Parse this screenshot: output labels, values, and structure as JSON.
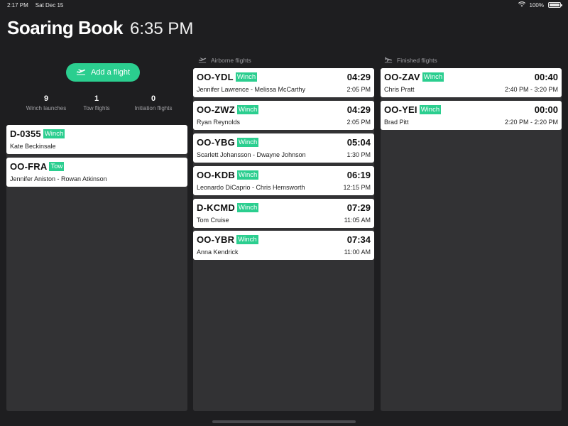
{
  "status_bar": {
    "time": "2:17 PM",
    "date": "Sat Dec 15",
    "battery": "100%"
  },
  "header": {
    "title": "Soaring Book",
    "clock": "6:35 PM"
  },
  "add_flight_label": "Add a flight",
  "stats": [
    {
      "value": "9",
      "label": "Winch launches"
    },
    {
      "value": "1",
      "label": "Tow flights"
    },
    {
      "value": "0",
      "label": "Initiation flights"
    }
  ],
  "columns": {
    "airborne_title": "Airborne flights",
    "finished_title": "Finished flights"
  },
  "pending": [
    {
      "callsign": "D-0355",
      "type": "Winch",
      "pilots": "Kate Beckinsale"
    },
    {
      "callsign": "OO-FRA",
      "type": "Tow",
      "pilots": "Jennifer Aniston - Rowan Atkinson"
    }
  ],
  "airborne": [
    {
      "callsign": "OO-YDL",
      "type": "Winch",
      "duration": "04:29",
      "pilots": "Jennifer Lawrence - Melissa McCarthy",
      "time": "2:05 PM"
    },
    {
      "callsign": "OO-ZWZ",
      "type": "Winch",
      "duration": "04:29",
      "pilots": "Ryan Reynolds",
      "time": "2:05 PM"
    },
    {
      "callsign": "OO-YBG",
      "type": "Winch",
      "duration": "05:04",
      "pilots": "Scarlett Johansson - Dwayne Johnson",
      "time": "1:30 PM"
    },
    {
      "callsign": "OO-KDB",
      "type": "Winch",
      "duration": "06:19",
      "pilots": "Leonardo DiCaprio - Chris Hemsworth",
      "time": "12:15 PM"
    },
    {
      "callsign": "D-KCMD",
      "type": "Winch",
      "duration": "07:29",
      "pilots": "Tom Cruise",
      "time": "11:05 AM"
    },
    {
      "callsign": "OO-YBR",
      "type": "Winch",
      "duration": "07:34",
      "pilots": "Anna Kendrick",
      "time": "11:00 AM"
    }
  ],
  "finished": [
    {
      "callsign": "OO-ZAV",
      "type": "Winch",
      "duration": "00:40",
      "pilots": "Chris Pratt",
      "time": "2:40 PM - 3:20 PM"
    },
    {
      "callsign": "OO-YEI",
      "type": "Winch",
      "duration": "00:00",
      "pilots": "Brad Pitt",
      "time": "2:20 PM - 2:20 PM"
    }
  ],
  "colors": {
    "accent": "#2bce8f",
    "background": "#1e1e20",
    "panel": "#323234"
  }
}
